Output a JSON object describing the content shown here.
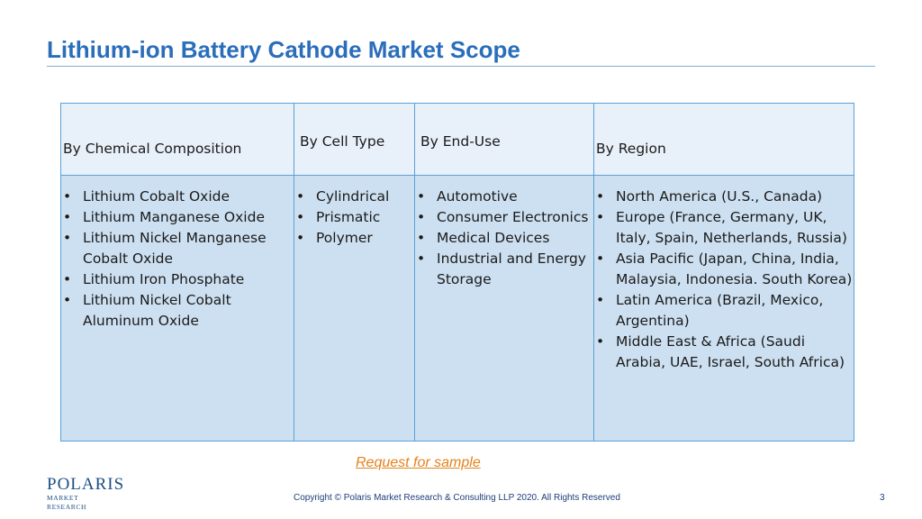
{
  "title": "Lithium-ion Battery Cathode Market Scope",
  "columns": [
    {
      "header": "By Chemical Composition",
      "items": [
        "Lithium Cobalt Oxide",
        "Lithium Manganese Oxide",
        "Lithium Nickel Manganese Cobalt Oxide",
        "Lithium Iron Phosphate",
        "Lithium Nickel Cobalt Aluminum Oxide"
      ]
    },
    {
      "header": "By Cell Type",
      "items": [
        "Cylindrical",
        "Prismatic",
        "Polymer"
      ]
    },
    {
      "header": "By End-Use",
      "items": [
        "Automotive",
        "Consumer Electronics",
        "Medical Devices",
        "Industrial and Energy Storage"
      ]
    },
    {
      "header": "By Region",
      "items": [
        "North America (U.S., Canada)",
        "Europe (France, Germany, UK, Italy, Spain, Netherlands, Russia)",
        "Asia Pacific (Japan, China, India, Malaysia, Indonesia. South Korea)",
        "Latin America (Brazil, Mexico, Argentina)",
        "Middle East & Africa (Saudi Arabia, UAE, Israel, South Africa)"
      ]
    }
  ],
  "link": "Request for sample",
  "logo": {
    "top": "POLARIS",
    "bottom": "MARKET RESEARCH"
  },
  "footer": {
    "copyright": "Copyright © Polaris Market Research & Consulting LLP 2020. All Rights Reserved",
    "page": "3"
  },
  "colors": {
    "title": "#2a6ebb",
    "link": "#e4821c",
    "header_bg": "#e8f0f9",
    "cell_bg": "#cde0f1",
    "border": "#5aa1d6"
  }
}
